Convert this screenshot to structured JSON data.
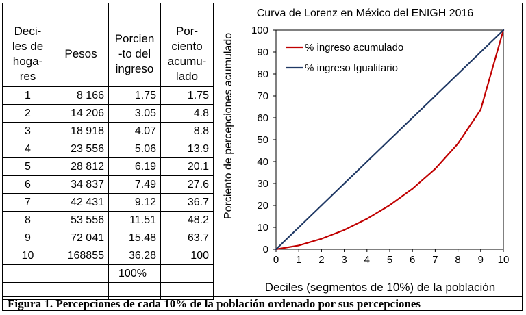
{
  "table": {
    "headers": [
      "Deci- les de hoga- res",
      "Pesos",
      "Porcien -to del ingreso",
      "Por- ciento acumu- lado"
    ],
    "header_lines": [
      [
        "Deci-",
        "les de",
        "hoga-",
        "res"
      ],
      [
        "Pesos"
      ],
      [
        "Porcien",
        "-to del",
        "ingreso"
      ],
      [
        "Por-",
        "ciento",
        "acumu-",
        "lado"
      ]
    ],
    "rows": [
      [
        "1",
        "8 166",
        "1.75",
        "1.75"
      ],
      [
        "2",
        "14 206",
        "3.05",
        "4.8"
      ],
      [
        "3",
        "18 918",
        "4.07",
        "8.8"
      ],
      [
        "4",
        "23 556",
        "5.06",
        "13.9"
      ],
      [
        "5",
        "28 812",
        "6.19",
        "20.1"
      ],
      [
        "6",
        "34 837",
        "7.49",
        "27.6"
      ],
      [
        "7",
        "42 431",
        "9.12",
        "36.7"
      ],
      [
        "8",
        "53 556",
        "11.51",
        "48.2"
      ],
      [
        "9",
        "72 041",
        "15.48",
        "63.7"
      ],
      [
        "10",
        "168855",
        "36.28",
        "100"
      ]
    ],
    "total_percent": "100%"
  },
  "chart_data": {
    "type": "line",
    "title": "Curva de Lorenz en México del ENIGH 2016",
    "xlabel": "Deciles (segmentos de 10%) de la población",
    "ylabel": "Porciento de percepciones acumulado",
    "x": [
      0,
      1,
      2,
      3,
      4,
      5,
      6,
      7,
      8,
      9,
      10
    ],
    "xlim": [
      0,
      10
    ],
    "ylim": [
      0,
      100
    ],
    "yticks": [
      0,
      10,
      20,
      30,
      40,
      50,
      60,
      70,
      80,
      90,
      100
    ],
    "grid": false,
    "legend_position": "top-left",
    "series": [
      {
        "name": "% ingreso acumulado",
        "color": "#c00000",
        "values": [
          0,
          1.75,
          4.8,
          8.8,
          13.9,
          20.1,
          27.6,
          36.7,
          48.2,
          63.7,
          100
        ]
      },
      {
        "name": "% ingreso Igualitario",
        "color": "#1f3864",
        "values": [
          0,
          10,
          20,
          30,
          40,
          50,
          60,
          70,
          80,
          90,
          100
        ]
      }
    ]
  },
  "caption": "Figura 1. Percepciones de cada 10% de la población ordenado por sus percepciones"
}
